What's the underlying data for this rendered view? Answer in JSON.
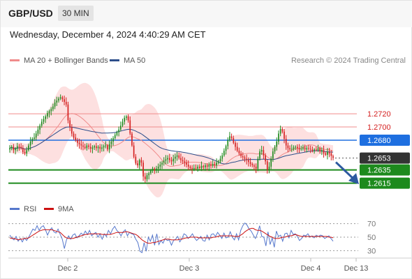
{
  "header": {
    "symbol": "GBP/USD",
    "timeframe": "30 MIN",
    "datetime": "Wednesday, December 4, 2024 4:40:29 AM CET"
  },
  "chart_data": [
    {
      "type": "candlestick",
      "legend": [
        {
          "name": "MA 20 + Bollinger Bands",
          "color": "#f08b8b"
        },
        {
          "name": "MA 50",
          "color": "#2d4e8a"
        }
      ],
      "credit": "Research © 2024 Trading Central",
      "ylim": [
        1.2585,
        1.2775
      ],
      "current_price": {
        "value": "1.2653",
        "color": "#333333"
      },
      "levels": [
        {
          "value": 1.272,
          "label": "1.2720",
          "type": "resistance",
          "color": "#f08b8b"
        },
        {
          "value": 1.27,
          "label": "1.2700",
          "type": "resistance",
          "color": "#f08b8b"
        },
        {
          "value": 1.268,
          "label": "1.2680",
          "type": "pivot",
          "color": "#1e6fe0"
        },
        {
          "value": 1.2635,
          "label": "1.2635",
          "type": "support",
          "color": "#1d8a1d"
        },
        {
          "value": 1.2615,
          "label": "1.2615",
          "type": "support",
          "color": "#1d8a1d"
        }
      ],
      "x_ticks": [
        "Dec 2",
        "Dec 3",
        "Dec 4",
        "Dec 13"
      ],
      "forecast_direction": "down",
      "colors": {
        "up": "#1d8a1d",
        "down": "#d42020",
        "band": "#fde0e0"
      },
      "close": [
        1.2668,
        1.267,
        1.2665,
        1.2667,
        1.2671,
        1.267,
        1.2668,
        1.2662,
        1.266,
        1.2665,
        1.2672,
        1.2678,
        1.2682,
        1.2684,
        1.269,
        1.2696,
        1.2702,
        1.2708,
        1.2712,
        1.2716,
        1.2721,
        1.2724,
        1.2727,
        1.2731,
        1.2737,
        1.274,
        1.2743,
        1.2745,
        1.2742,
        1.2738,
        1.2734,
        1.271,
        1.27,
        1.269,
        1.2684,
        1.268,
        1.2676,
        1.2674,
        1.2672,
        1.267,
        1.2668,
        1.2672,
        1.267,
        1.2667,
        1.2669,
        1.2671,
        1.2668,
        1.267,
        1.2667,
        1.2669,
        1.2671,
        1.2672,
        1.2666,
        1.2674,
        1.2678,
        1.2683,
        1.2688,
        1.2692,
        1.2696,
        1.2702,
        1.2708,
        1.2714,
        1.2716,
        1.271,
        1.269,
        1.2672,
        1.2655,
        1.2645,
        1.2642,
        1.265,
        1.2646,
        1.2625,
        1.2621,
        1.2627,
        1.263,
        1.2634,
        1.2637,
        1.2634,
        1.2637,
        1.264,
        1.2643,
        1.2646,
        1.2649,
        1.2651,
        1.2653,
        1.265,
        1.2648,
        1.2652,
        1.2655,
        1.2657,
        1.2653,
        1.265,
        1.2648,
        1.2646,
        1.2643,
        1.264,
        1.2638,
        1.2636,
        1.2638,
        1.2637,
        1.264,
        1.2638,
        1.2641,
        1.2639,
        1.2642,
        1.264,
        1.2643,
        1.2641,
        1.2644,
        1.2642,
        1.2646,
        1.2648,
        1.2652,
        1.2657,
        1.2664,
        1.2671,
        1.268,
        1.2686,
        1.2683,
        1.2676,
        1.267,
        1.2664,
        1.266,
        1.2656,
        1.2654,
        1.2652,
        1.265,
        1.2647,
        1.2644,
        1.2642,
        1.264,
        1.2637,
        1.2652,
        1.2663,
        1.2665,
        1.2657,
        1.2648,
        1.2635,
        1.264,
        1.2652,
        1.2663,
        1.267,
        1.2678,
        1.269,
        1.2697,
        1.2693,
        1.2682,
        1.2672,
        1.2668,
        1.2666,
        1.2667,
        1.2669,
        1.267,
        1.2668,
        1.2666,
        1.2667,
        1.2669,
        1.2666,
        1.2668,
        1.2667,
        1.2666,
        1.2664,
        1.2666,
        1.2665,
        1.2668,
        1.2663,
        1.2665,
        1.266,
        1.2658,
        1.2662,
        1.266,
        1.2656,
        1.2653
      ]
    },
    {
      "type": "line",
      "legend": [
        {
          "name": "RSI",
          "color": "#5577cc"
        },
        {
          "name": "9MA",
          "color": "#cc1111"
        }
      ],
      "ylim": [
        20,
        80
      ],
      "y_ticks": [
        "70",
        "50",
        "30"
      ],
      "series": [
        {
          "name": "RSI",
          "values": [
            53,
            49,
            46,
            51,
            44,
            48,
            43,
            49,
            45,
            50,
            56,
            62,
            60,
            67,
            60,
            65,
            67,
            61,
            53,
            60,
            64,
            58,
            56,
            62,
            54,
            47,
            33,
            46,
            52,
            47,
            53,
            55,
            49,
            52,
            56,
            53,
            59,
            54,
            60,
            52,
            55,
            57,
            50,
            55,
            47,
            55,
            51,
            60,
            55,
            62,
            66,
            60,
            57,
            52,
            58,
            61,
            52,
            57,
            55,
            54,
            47,
            42,
            29,
            27,
            42,
            29,
            50,
            44,
            53,
            38,
            55,
            39,
            45,
            41,
            48,
            45,
            46,
            38,
            45,
            47,
            51,
            43,
            48,
            55,
            53,
            48,
            51,
            55,
            49,
            45,
            48,
            51,
            45,
            44,
            53,
            46,
            54,
            55,
            51,
            57,
            53,
            48,
            56,
            49,
            50,
            58,
            50,
            46,
            55,
            46,
            60,
            67,
            71,
            68,
            62,
            59,
            53,
            48,
            56,
            67,
            51,
            50,
            37,
            58,
            39,
            49,
            35,
            59,
            51,
            53,
            44,
            55,
            56,
            49,
            60,
            54,
            55,
            51,
            45,
            48,
            53,
            52,
            55,
            50,
            52,
            49,
            53,
            51,
            53,
            52,
            48,
            50,
            52,
            48,
            44
          ]
        },
        {
          "name": "9MA",
          "values": [
            49,
            48,
            48,
            47,
            46,
            47,
            47,
            48,
            48,
            49,
            51,
            53,
            55,
            57,
            59,
            60,
            61,
            61,
            61,
            61,
            61,
            60,
            59,
            58,
            57,
            54,
            51,
            49,
            48,
            48,
            48,
            49,
            50,
            51,
            52,
            53,
            54,
            54,
            55,
            55,
            55,
            55,
            55,
            55,
            54,
            54,
            54,
            54,
            54,
            55,
            56,
            57,
            57,
            57,
            57,
            58,
            58,
            57,
            56,
            55,
            54,
            52,
            49,
            46,
            44,
            42,
            41,
            41,
            42,
            42,
            43,
            44,
            45,
            46,
            47,
            47,
            47,
            46,
            46,
            46,
            46,
            47,
            47,
            48,
            49,
            49,
            50,
            50,
            50,
            50,
            49,
            49,
            49,
            49,
            49,
            49,
            49,
            50,
            50,
            51,
            52,
            52,
            52,
            52,
            52,
            52,
            52,
            51,
            51,
            51,
            53,
            55,
            58,
            60,
            62,
            63,
            63,
            61,
            60,
            60,
            59,
            57,
            55,
            53,
            51,
            50,
            48,
            48,
            48,
            49,
            50,
            50,
            51,
            52,
            52,
            53,
            54,
            53,
            52,
            51,
            51,
            51,
            51,
            51,
            51,
            51,
            51,
            51,
            51,
            51,
            51,
            51,
            50,
            50,
            49
          ]
        }
      ]
    }
  ]
}
